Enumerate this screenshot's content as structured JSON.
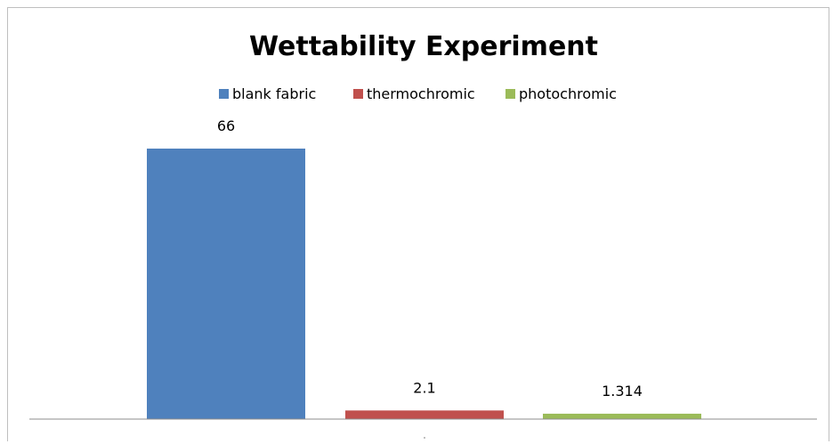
{
  "chart_data": {
    "type": "bar",
    "title": "Wettability Experiment",
    "categories": [
      ""
    ],
    "series": [
      {
        "name": "blank fabric",
        "values": [
          66
        ],
        "color": "#4F81BD"
      },
      {
        "name": "thermochromic",
        "values": [
          2.1
        ],
        "color": "#C0504D"
      },
      {
        "name": "photochromic",
        "values": [
          1.314
        ],
        "color": "#9BBB59"
      }
    ],
    "data_labels": [
      "66",
      "2.1",
      "1.314"
    ],
    "xlabel": "",
    "ylabel": "",
    "ylim": [
      0,
      66
    ],
    "grid": false,
    "legend_position": "top"
  }
}
